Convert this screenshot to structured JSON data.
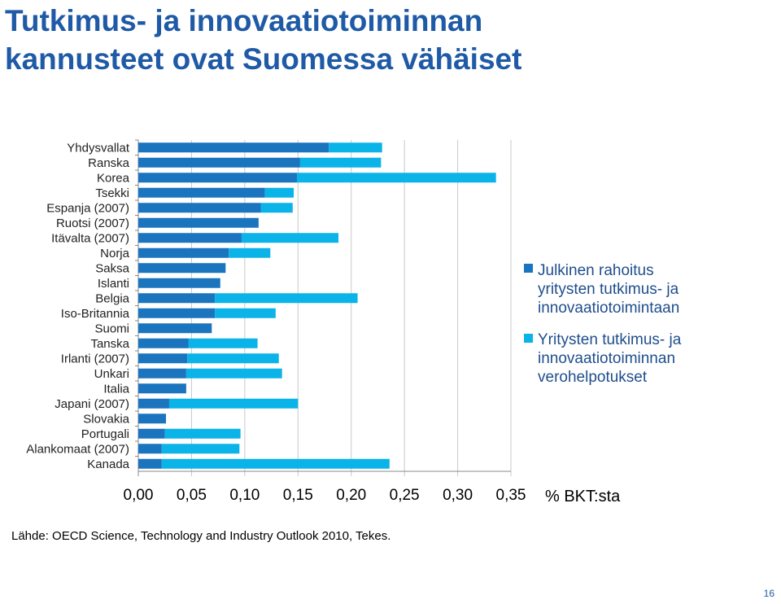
{
  "slide": {
    "title_line1": "Tutkimus- ja innovaatiotoiminnan",
    "title_line2": "kannusteet ovat Suomessa vähäiset",
    "source": "Lähde: OECD Science, Technology and Industry Outlook 2010, Tekes.",
    "page_number": "16"
  },
  "colors": {
    "series1": "#1a74be",
    "series2": "#0ab3e8",
    "title": "#1f5aa6"
  },
  "chart_data": {
    "type": "bar",
    "orientation": "horizontal",
    "stacked": true,
    "categories": [
      "Yhdysvallat",
      "Ranska",
      "Korea",
      "Tsekki",
      "Espanja (2007)",
      "Ruotsi (2007)",
      "Itävalta (2007)",
      "Norja",
      "Saksa",
      "Islanti",
      "Belgia",
      "Iso-Britannia",
      "Suomi",
      "Tanska",
      "Irlanti (2007)",
      "Unkari",
      "Italia",
      "Japani (2007)",
      "Slovakia",
      "Portugali",
      "Alankomaat (2007)",
      "Kanada"
    ],
    "series": [
      {
        "name": "Julkinen rahoitus yritysten tutkimus- ja innovaatiotoimintaan",
        "values": [
          0.179,
          0.152,
          0.149,
          0.119,
          0.115,
          0.113,
          0.097,
          0.085,
          0.082,
          0.077,
          0.072,
          0.072,
          0.069,
          0.047,
          0.046,
          0.045,
          0.045,
          0.029,
          0.026,
          0.025,
          0.022,
          0.022
        ]
      },
      {
        "name": "Yritysten tutkimus- ja innovaatiotoiminnan verohelpotukset",
        "values": [
          0.05,
          0.076,
          0.187,
          0.027,
          0.03,
          0.0,
          0.091,
          0.039,
          0.0,
          0.0,
          0.134,
          0.057,
          0.0,
          0.065,
          0.086,
          0.09,
          0.0,
          0.121,
          0.0,
          0.071,
          0.073,
          0.214
        ]
      }
    ],
    "x_ticks": [
      "0,00",
      "0,05",
      "0,10",
      "0,15",
      "0,20",
      "0,25",
      "0,30",
      "0,35"
    ],
    "xlim": [
      0,
      0.35
    ],
    "xlabel": "% BKT:sta",
    "legend": {
      "position": "right",
      "items": [
        "Julkinen rahoitus yritysten tutkimus- ja innovaatiotoimintaan",
        "Yritysten tutkimus- ja innovaatiotoiminnan verohelpotukset"
      ]
    },
    "grid": "vertical"
  }
}
